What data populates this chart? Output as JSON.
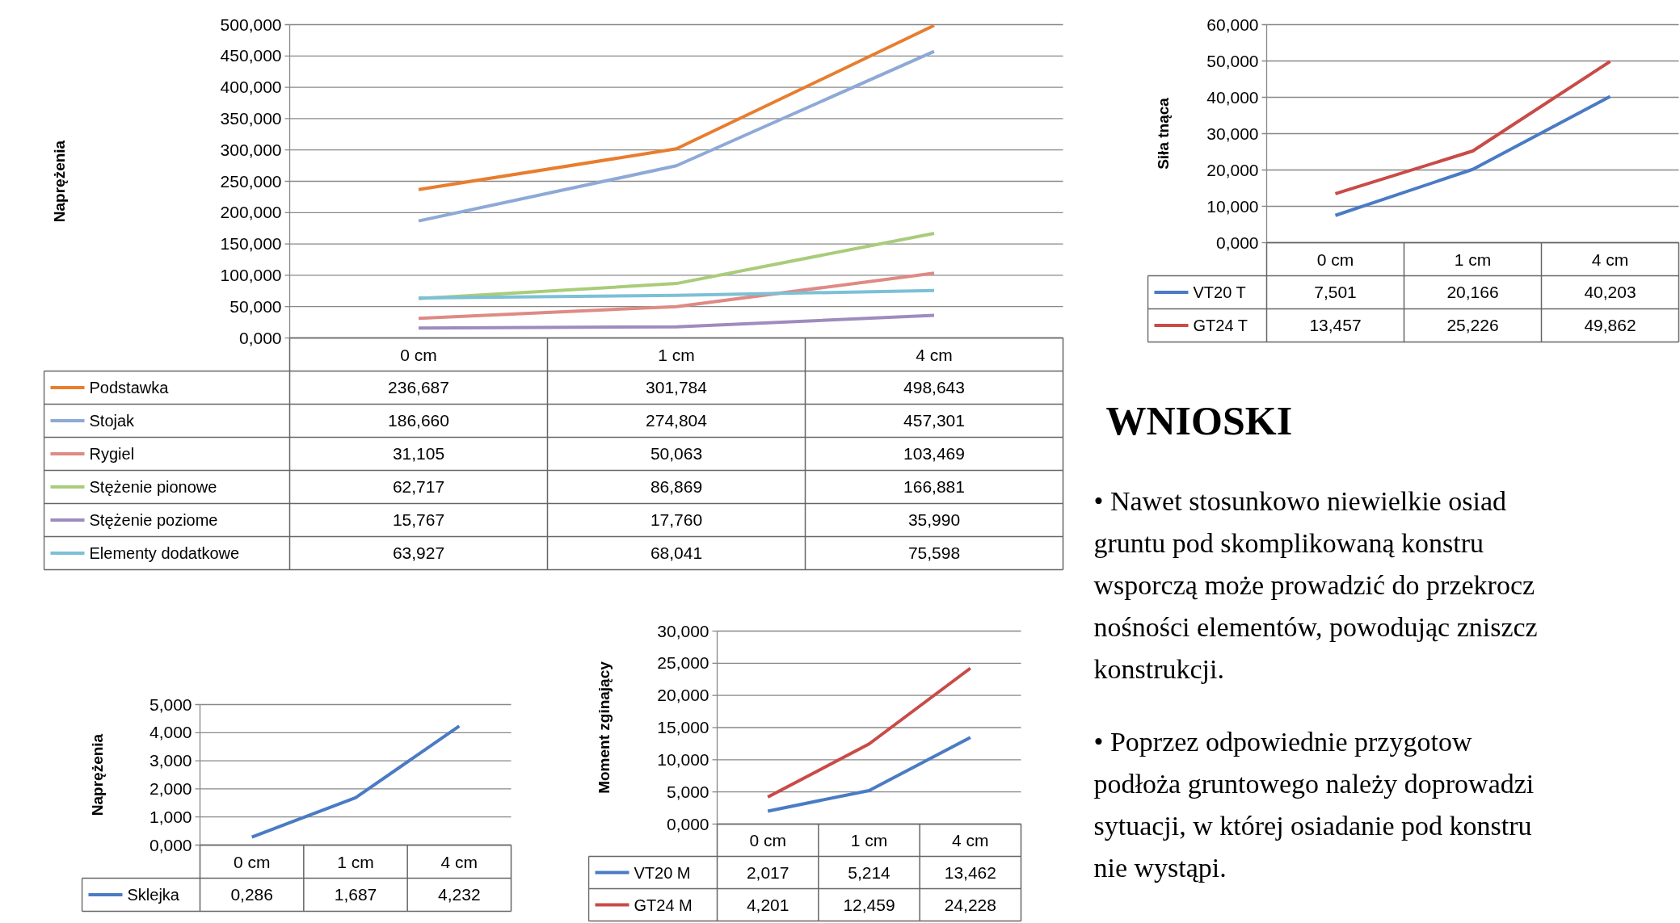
{
  "chart_data": [
    {
      "type": "line",
      "ylabel": "Naprężenia",
      "categories": [
        "0 cm",
        "1 cm",
        "4 cm"
      ],
      "ylim": [
        0,
        500
      ],
      "yticks": [
        {
          "value": 0,
          "label": "0,000"
        },
        {
          "value": 50,
          "label": "50,000"
        },
        {
          "value": 100,
          "label": "100,000"
        },
        {
          "value": 150,
          "label": "150,000"
        },
        {
          "value": 200,
          "label": "200,000"
        },
        {
          "value": 250,
          "label": "250,000"
        },
        {
          "value": 300,
          "label": "300,000"
        },
        {
          "value": 350,
          "label": "350,000"
        },
        {
          "value": 400,
          "label": "400,000"
        },
        {
          "value": 450,
          "label": "450,000"
        },
        {
          "value": 500,
          "label": "500,000"
        }
      ],
      "grid": "y",
      "legend": "bottom",
      "line_style": "solid",
      "series": [
        {
          "name": "Podstawka",
          "color": "#e87d2e",
          "values": [
            236.687,
            301.784,
            498.643
          ],
          "value_labels": [
            "236,687",
            "301,784",
            "498,643"
          ]
        },
        {
          "name": "Stojak",
          "color": "#8ea9d6",
          "values": [
            186.66,
            274.804,
            457.301
          ],
          "value_labels": [
            "186,660",
            "274,804",
            "457,301"
          ]
        },
        {
          "name": "Rygiel",
          "color": "#de8a85",
          "values": [
            31.105,
            50.063,
            103.469
          ],
          "value_labels": [
            "31,105",
            "50,063",
            "103,469"
          ]
        },
        {
          "name": "Stężenie pionowe",
          "color": "#a9cc7a",
          "values": [
            62.717,
            86.869,
            166.881
          ],
          "value_labels": [
            "62,717",
            "86,869",
            "166,881"
          ]
        },
        {
          "name": "Stężenie poziome",
          "color": "#9f8bbe",
          "values": [
            15.767,
            17.76,
            35.99
          ],
          "value_labels": [
            "15,767",
            "17,760",
            "35,990"
          ]
        },
        {
          "name": "Elementy dodatkowe",
          "color": "#7cc0d6",
          "values": [
            63.927,
            68.041,
            75.598
          ],
          "value_labels": [
            "63,927",
            "68,041",
            "75,598"
          ]
        }
      ]
    },
    {
      "type": "line",
      "ylabel": "Siła tnąca",
      "categories": [
        "0 cm",
        "1 cm",
        "4 cm"
      ],
      "ylim": [
        0,
        60
      ],
      "yticks": [
        {
          "value": 0,
          "label": "0,000"
        },
        {
          "value": 10,
          "label": "10,000"
        },
        {
          "value": 20,
          "label": "20,000"
        },
        {
          "value": 30,
          "label": "30,000"
        },
        {
          "value": 40,
          "label": "40,000"
        },
        {
          "value": 50,
          "label": "50,000"
        },
        {
          "value": 60,
          "label": "60,000"
        }
      ],
      "grid": "y",
      "legend": "bottom",
      "line_style": "solid",
      "series": [
        {
          "name": "VT20 T",
          "color": "#4a7bc4",
          "values": [
            7.501,
            20.166,
            40.203
          ],
          "value_labels": [
            "7,501",
            "20,166",
            "40,203"
          ]
        },
        {
          "name": "GT24 T",
          "color": "#c94b47",
          "values": [
            13.457,
            25.226,
            49.862
          ],
          "value_labels": [
            "13,457",
            "25,226",
            "49,862"
          ]
        }
      ]
    },
    {
      "type": "line",
      "ylabel": "Naprężenia",
      "categories": [
        "0 cm",
        "1 cm",
        "4 cm"
      ],
      "ylim": [
        0,
        5
      ],
      "yticks": [
        {
          "value": 0,
          "label": "0,000"
        },
        {
          "value": 1,
          "label": "1,000"
        },
        {
          "value": 2,
          "label": "2,000"
        },
        {
          "value": 3,
          "label": "3,000"
        },
        {
          "value": 4,
          "label": "4,000"
        },
        {
          "value": 5,
          "label": "5,000"
        }
      ],
      "grid": "y",
      "legend": "bottom",
      "line_style": "solid",
      "series": [
        {
          "name": "Sklejka",
          "color": "#4a7bc4",
          "values": [
            0.286,
            1.687,
            4.232
          ],
          "value_labels": [
            "0,286",
            "1,687",
            "4,232"
          ]
        }
      ]
    },
    {
      "type": "line",
      "ylabel": "Moment zginający",
      "categories": [
        "0 cm",
        "1 cm",
        "4 cm"
      ],
      "ylim": [
        0,
        30
      ],
      "yticks": [
        {
          "value": 0,
          "label": "0,000"
        },
        {
          "value": 5,
          "label": "5,000"
        },
        {
          "value": 10,
          "label": "10,000"
        },
        {
          "value": 15,
          "label": "15,000"
        },
        {
          "value": 20,
          "label": "20,000"
        },
        {
          "value": 25,
          "label": "25,000"
        },
        {
          "value": 30,
          "label": "30,000"
        }
      ],
      "grid": "y",
      "legend": "bottom",
      "line_style": "solid",
      "series": [
        {
          "name": "VT20 M",
          "color": "#4a7bc4",
          "values": [
            2.017,
            5.214,
            13.462
          ],
          "value_labels": [
            "2,017",
            "5,214",
            "13,462"
          ]
        },
        {
          "name": "GT24 M",
          "color": "#c94b47",
          "values": [
            4.201,
            12.459,
            24.228
          ],
          "value_labels": [
            "4,201",
            "12,459",
            "24,228"
          ]
        }
      ]
    },
    {
      "type": "other",
      "title": "WNIOSKI",
      "annotations": [
        "• Nawet stosunkowo niewielkie osiad\ngruntu pod skomplikowaną konstru\nwsporczą może prowadzić do przekrocz\nnośności elementów, powodując zniszcz\nkonstrukcji.",
        "• Poprzez odpowiednie przygotow\npodłoża gruntowego należy doprowadzi\nsytuacji, w której osiadanie pod konstru\nnie wystąpi."
      ]
    }
  ]
}
